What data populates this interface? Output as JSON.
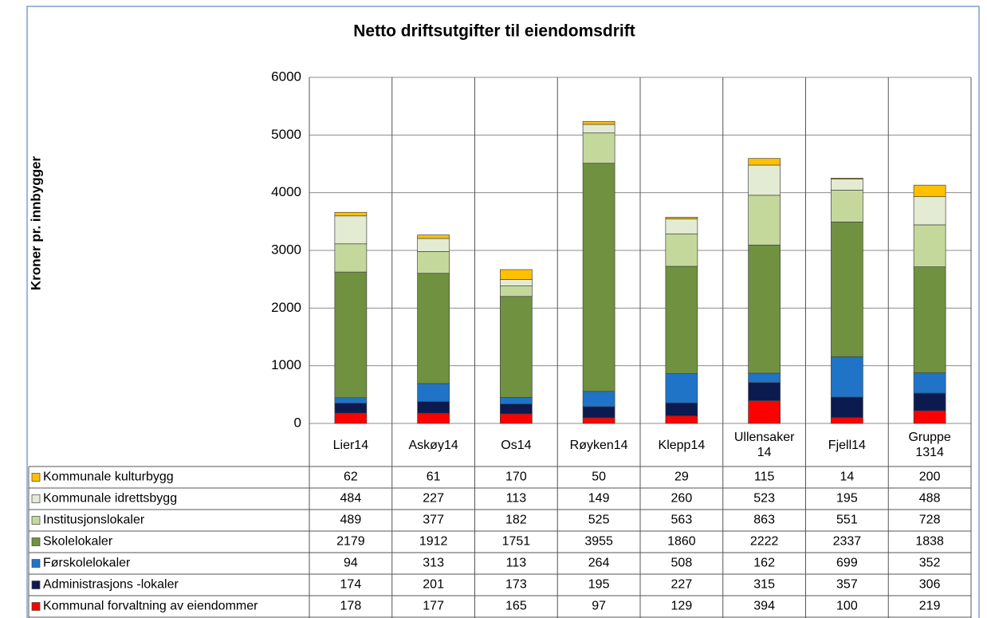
{
  "chart_data": {
    "type": "bar",
    "stacked": true,
    "title": "Netto driftsutgifter til eiendomsdrift",
    "y_label": "Kroner pr. innbygger",
    "categories": [
      "Lier14",
      "Askøy14",
      "Os14",
      "Røyken14",
      "Klepp14",
      "Ullensaker 14",
      "Fjell14",
      "Gruppe 1314"
    ],
    "series": [
      {
        "name": "Kommunal forvaltning av eiendommer",
        "color": "#ff0000",
        "values": [
          178,
          177,
          165,
          97,
          129,
          394,
          100,
          219
        ]
      },
      {
        "name": "Administrasjons -lokaler",
        "color": "#0b1b50",
        "values": [
          174,
          201,
          173,
          195,
          227,
          315,
          357,
          306
        ]
      },
      {
        "name": "Førskolelokaler",
        "color": "#1f74c8",
        "values": [
          94,
          313,
          113,
          264,
          508,
          162,
          699,
          352
        ]
      },
      {
        "name": "Skolelokaler",
        "color": "#6f9140",
        "values": [
          2179,
          1912,
          1751,
          3955,
          1860,
          2222,
          2337,
          1838
        ]
      },
      {
        "name": "Institusjonslokaler",
        "color": "#c4d89c",
        "values": [
          489,
          377,
          182,
          525,
          563,
          863,
          551,
          728
        ]
      },
      {
        "name": "Kommunale idrettsbygg",
        "color": "#e3ebd2",
        "values": [
          484,
          227,
          113,
          149,
          260,
          523,
          195,
          488
        ]
      },
      {
        "name": "Kommunale kulturbygg",
        "color": "#ffc000",
        "values": [
          62,
          61,
          170,
          50,
          29,
          115,
          14,
          200
        ]
      }
    ],
    "ylim": [
      0,
      6000
    ],
    "yticks": [
      0,
      1000,
      2000,
      3000,
      4000,
      5000,
      6000
    ],
    "grid": true
  }
}
